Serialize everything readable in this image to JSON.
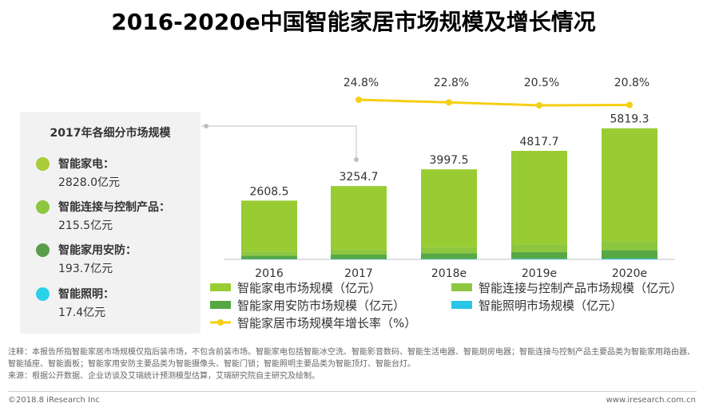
{
  "title": "2016-2020e中国智能家居市场规模及增长情况",
  "chart_data": {
    "type": "bar",
    "categories": [
      "2016",
      "2017",
      "2018e",
      "2019e",
      "2020e"
    ],
    "stack_order": [
      "智能照明市场规模（亿元）",
      "智能家用安防市场规模（亿元）",
      "智能连接与控制产品市场规模（亿元）",
      "智能家电市场规模（亿元）"
    ],
    "series": [
      {
        "name": "智能家电市场规模（亿元）",
        "color": "#99cc33",
        "values": [
          2260.0,
          2828.0,
          3460.0,
          4160.0,
          5010.0
        ]
      },
      {
        "name": "智能连接与控制产品市场规模（亿元）",
        "color": "#8dc63f",
        "values": [
          180.0,
          215.5,
          268.0,
          330.0,
          405.0
        ]
      },
      {
        "name": "智能家用安防市场规模（亿元）",
        "color": "#56a844",
        "values": [
          155.0,
          193.7,
          248.0,
          300.0,
          370.0
        ]
      },
      {
        "name": "智能照明市场规模（亿元）",
        "color": "#29c5e6",
        "values": [
          13.5,
          17.4,
          21.5,
          27.7,
          34.3
        ]
      }
    ],
    "totals": [
      2608.5,
      3254.7,
      3997.5,
      4817.7,
      5819.3
    ],
    "total_labels": [
      "2608.5",
      "3254.7",
      "3997.5",
      "4817.7",
      "5819.3"
    ],
    "growth": {
      "name": "智能家居市场规模年增长率（%）",
      "color": "#f5cf14",
      "values": [
        24.8,
        22.8,
        20.5,
        20.8
      ],
      "labels": [
        "24.8%",
        "22.8%",
        "20.5%",
        "20.8%"
      ],
      "categories": [
        "2017",
        "2018e",
        "2019e",
        "2020e"
      ]
    },
    "ylim": [
      0,
      6200
    ],
    "legend": [
      {
        "label": "智能家电市场规模（亿元）",
        "color": "#99cc33",
        "kind": "bar"
      },
      {
        "label": "智能连接与控制产品市场规模（亿元）",
        "color": "#8dc63f",
        "kind": "bar"
      },
      {
        "label": "智能家用安防市场规模（亿元）",
        "color": "#56a844",
        "kind": "bar"
      },
      {
        "label": "智能照明市场规模（亿元）",
        "color": "#29c5e6",
        "kind": "bar"
      },
      {
        "label": "智能家居市场规模年增长率（%）",
        "color": "#f5cf14",
        "kind": "line"
      }
    ]
  },
  "breakdown": {
    "title": "2017年各细分市场规模",
    "items": [
      {
        "name": "智能家电：",
        "value": "2828.0亿元",
        "color": "#a8cc3a"
      },
      {
        "name": "智能连接与控制产品：",
        "value": "215.5亿元",
        "color": "#8dc63f"
      },
      {
        "name": "智能家用安防：",
        "value": "193.7亿元",
        "color": "#5a9e4b"
      },
      {
        "name": "智能照明：",
        "value": "17.4亿元",
        "color": "#2bd1e8"
      }
    ]
  },
  "note": "注释：本报告所指智能家居市场规模仅指后装市场，不包含前装市场。智能家电包括智能冰空洗、智能影音数码、智能生活电器、智能厨房电器；智能连接与控制产品主要品类为智能家用路由器、智能插座、智能面板；智能家用安防主要品类为智能摄像头、智能门锁；智能照明主要品类为智能顶灯、智能台灯。",
  "source": "来源：根据公开数据、企业访谈及艾瑞统计预测模型估算，艾瑞研究院自主研究及绘制。",
  "copyright": "©2018.8 iResearch Inc",
  "site": "www.iresearch.com.cn"
}
